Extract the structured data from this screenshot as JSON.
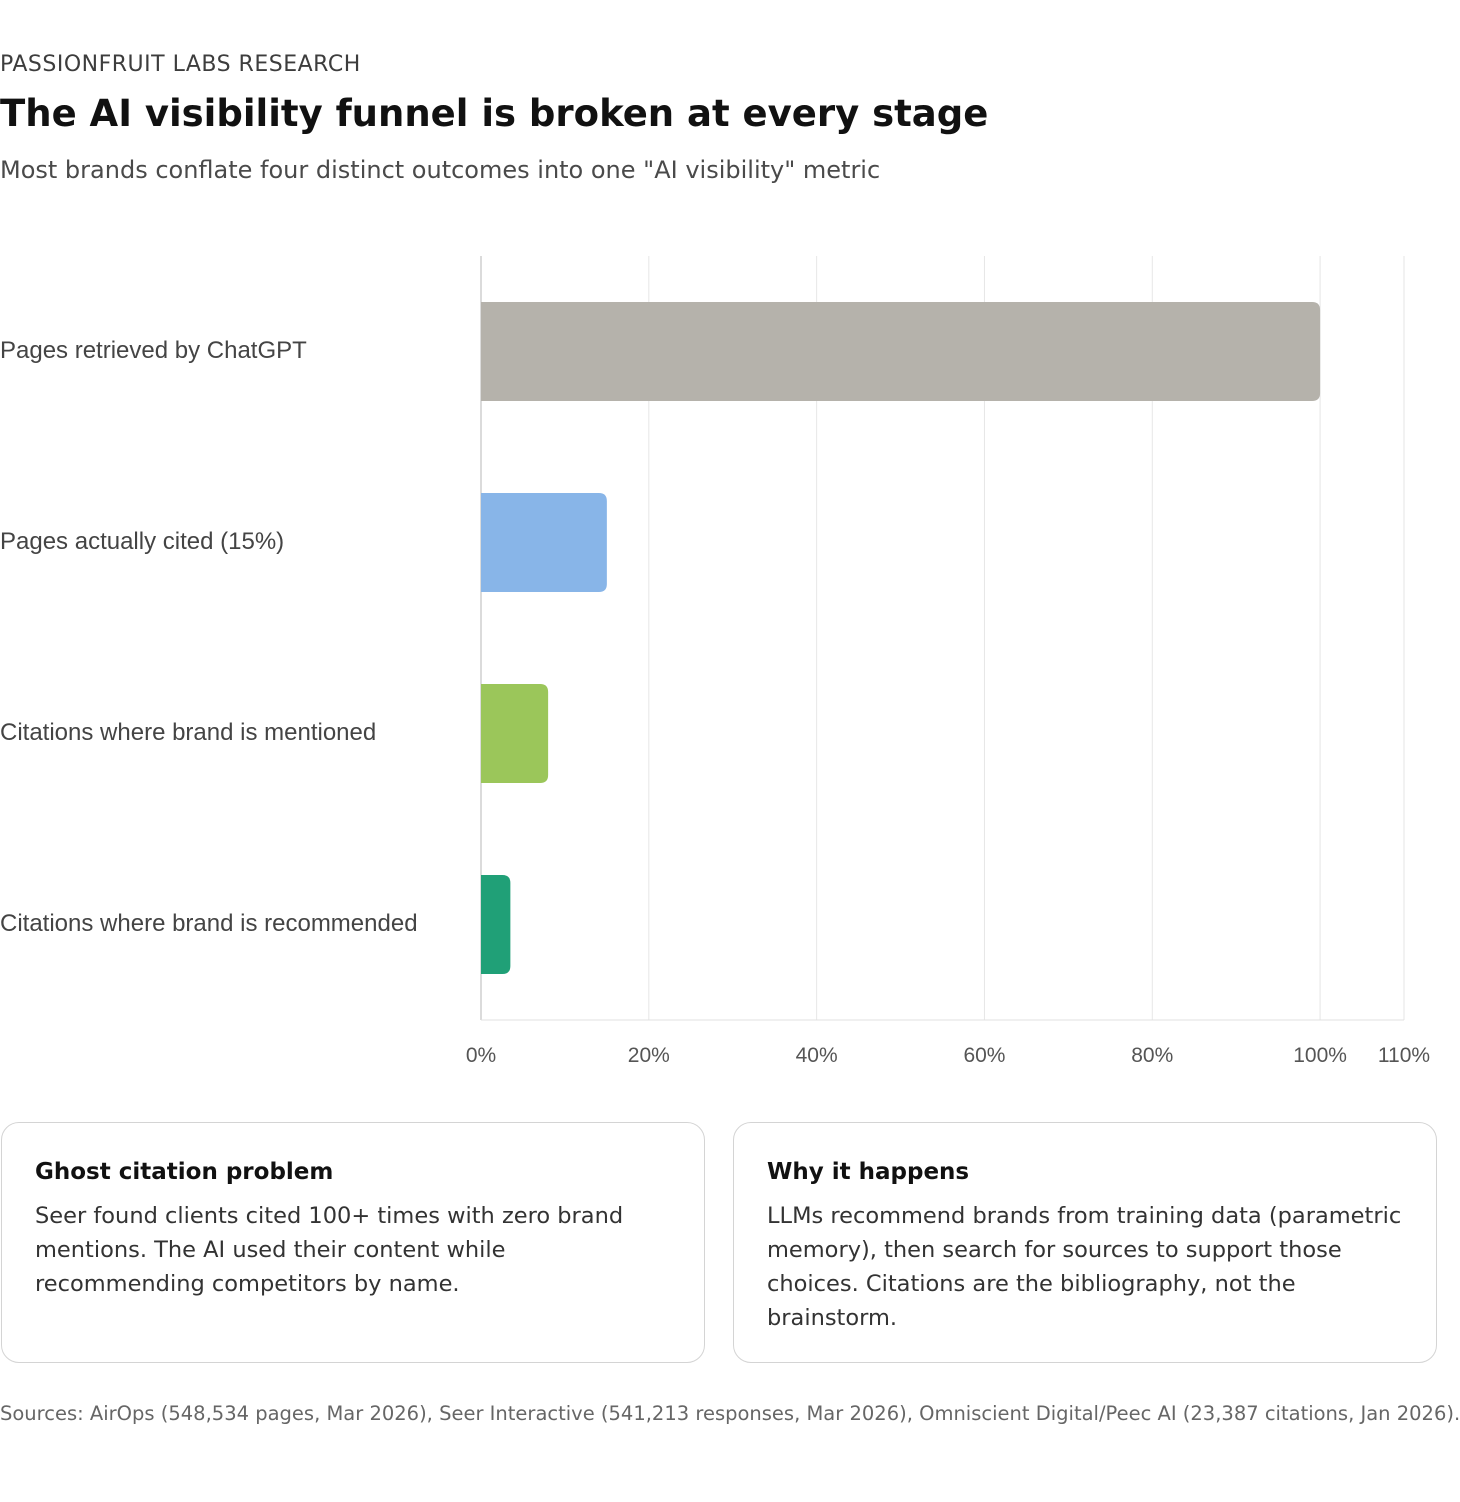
{
  "header": {
    "eyebrow": "PASSIONFRUIT LABS RESEARCH",
    "title": "The AI visibility funnel is broken at every stage",
    "subtitle": "Most brands conflate four distinct outcomes into one \"AI visibility\" metric"
  },
  "chart_data": {
    "type": "bar",
    "orientation": "horizontal",
    "categories": [
      "Pages retrieved by ChatGPT",
      "Pages actually cited (15%)",
      "Citations where brand is mentioned",
      "Citations where brand is recommended"
    ],
    "values": [
      100,
      15,
      8,
      3.5
    ],
    "colors": [
      "#b5b2ab",
      "#88b5e8",
      "#9bc65a",
      "#20a077"
    ],
    "unit": "%",
    "xlim": [
      0,
      110
    ],
    "xticks": [
      0,
      20,
      40,
      60,
      80,
      100,
      110
    ],
    "xtick_labels": [
      "0%",
      "20%",
      "40%",
      "60%",
      "80%",
      "100%",
      "110%"
    ],
    "grid": true,
    "legend": "none"
  },
  "cards": [
    {
      "title": "Ghost citation problem",
      "body": "Seer found clients cited 100+ times with zero brand mentions. The AI used their content while recommending competitors by name."
    },
    {
      "title": "Why it happens",
      "body": "LLMs recommend brands from training data (parametric memory), then search for sources to support those choices. Citations are the bibliography, not the brainstorm."
    }
  ],
  "footer": {
    "sources": "Sources: AirOps (548,534 pages, Mar 2026), Seer Interactive (541,213 responses, Mar 2026), Omniscient Digital/Peec AI (23,387 citations, Jan 2026)."
  }
}
